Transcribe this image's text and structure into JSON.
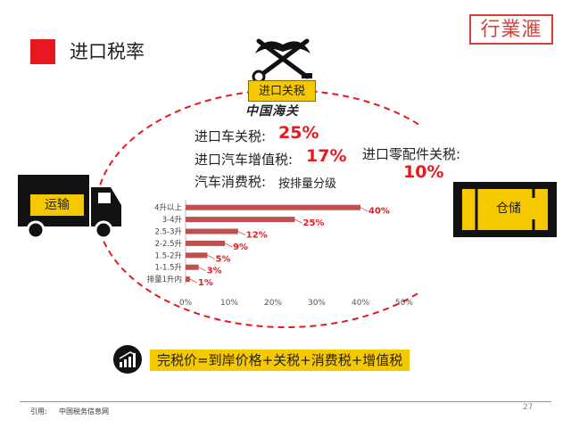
{
  "page_title": "进口税率",
  "logo_text": "行業滙",
  "customs": {
    "badge": "进口关税",
    "name": "中国海关"
  },
  "tariffs": {
    "vehicle_label": "进口车关税:",
    "vehicle_value": "25%",
    "vat_label": "进口汽车增值税:",
    "vat_value": "17%",
    "consumption_label": "汽车消费税:",
    "consumption_value": "按排量分级",
    "parts_label": "进口零配件关税:",
    "parts_value": "10%"
  },
  "left_node": "运输",
  "right_node": "仓储",
  "formula": "完税价=到岸价格+关税+消费税+增值税",
  "footer": {
    "ref_label": "引用:",
    "source": "中国税务信息网",
    "page_number": "27"
  },
  "colors": {
    "accent_red": "#e8191e",
    "bar": "#c0504d",
    "yellow": "#f5c800"
  },
  "chart_data": {
    "type": "bar",
    "orientation": "horizontal",
    "categories": [
      "4升以上",
      "3-4升",
      "2.5-3升",
      "2-2.5升",
      "1.5-2升",
      "1-1.5升",
      "排量1升内"
    ],
    "values": [
      40,
      25,
      12,
      9,
      5,
      3,
      1
    ],
    "data_labels": [
      "40%",
      "25%",
      "12%",
      "9%",
      "5%",
      "3%",
      "1%"
    ],
    "x_ticks": [
      "0%",
      "10%",
      "20%",
      "30%",
      "40%",
      "50%"
    ],
    "xlim": [
      0,
      50
    ],
    "grid": false
  }
}
